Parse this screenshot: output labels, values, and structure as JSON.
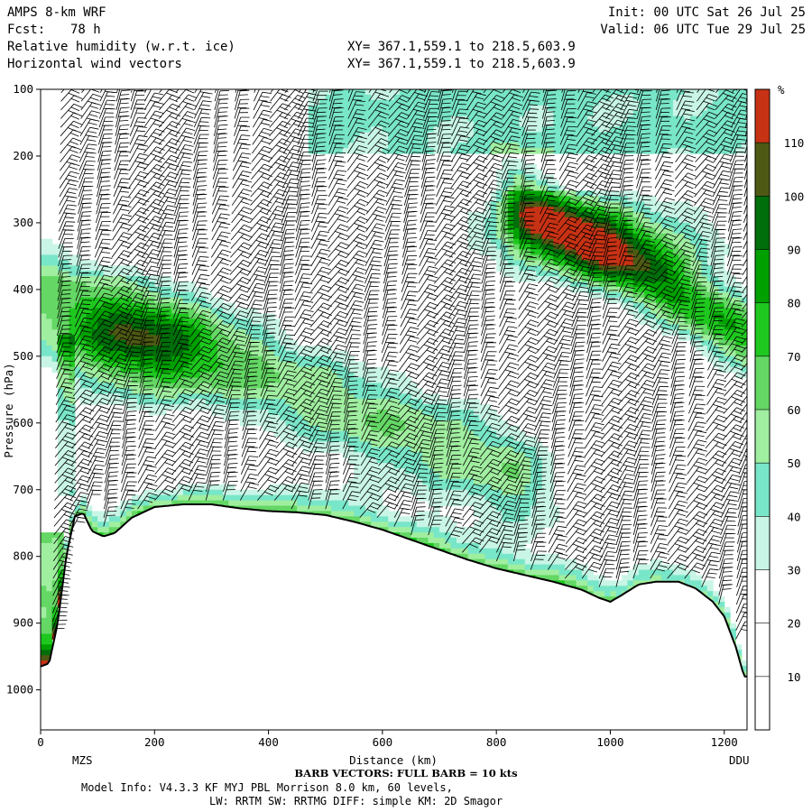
{
  "header": {
    "model": "AMPS 8-km WRF",
    "fcst_label": "Fcst:",
    "fcst_value": "78 h",
    "field1": "Relative humidity (w.r.t. ice)",
    "field2": "Horizontal wind vectors",
    "init": "Init: 00 UTC Sat 26 Jul 25",
    "valid": "Valid: 06 UTC Tue 29 Jul 25",
    "xy1": "XY= 367.1,559.1 to 218.5,603.9",
    "xy2": "XY= 367.1,559.1 to 218.5,603.9"
  },
  "footer": {
    "left_station": "MZS",
    "right_station": "DDU",
    "barb_note": "BARB VECTORS:  FULL BARB = 10 kts",
    "model_info_1": "Model Info: V4.3.3   KF     MYJ PBL  Morrison         8.0 km,  60 levels,",
    "model_info_2": "LW: RRTM SW: RRTMG   DIFF: simple KM: 2D Smagor"
  },
  "chart_data": {
    "type": "heatmap",
    "xlabel": "Distance (km)",
    "ylabel": "Pressure (hPa)",
    "xlim": [
      0,
      1240
    ],
    "ylim": [
      100,
      1060
    ],
    "x_ticks": [
      0,
      200,
      400,
      600,
      800,
      1000,
      1200
    ],
    "y_ticks": [
      100,
      200,
      300,
      400,
      500,
      600,
      700,
      800,
      900,
      1000
    ],
    "colorbar": {
      "unit": "%",
      "levels": [
        10,
        20,
        30,
        40,
        50,
        60,
        70,
        80,
        90,
        100,
        110
      ],
      "colors": [
        "#ffffff",
        "#ffffff",
        "#ffffff",
        "#c8f5e6",
        "#78e6c8",
        "#a0eea0",
        "#64d764",
        "#1ec81e",
        "#00a000",
        "#006e0a",
        "#4e5a14",
        "#c83214"
      ]
    },
    "terrain": {
      "x": [
        0,
        15,
        30,
        45,
        60,
        75,
        90,
        110,
        130,
        160,
        200,
        250,
        300,
        350,
        400,
        450,
        500,
        550,
        600,
        650,
        700,
        750,
        800,
        850,
        900,
        950,
        980,
        1000,
        1020,
        1050,
        1080,
        1120,
        1150,
        1180,
        1200,
        1220,
        1235
      ],
      "p": [
        965,
        960,
        900,
        800,
        740,
        735,
        762,
        770,
        765,
        742,
        726,
        722,
        722,
        728,
        732,
        734,
        738,
        748,
        760,
        775,
        790,
        805,
        818,
        828,
        838,
        850,
        862,
        868,
        858,
        842,
        838,
        838,
        848,
        868,
        890,
        935,
        980
      ]
    }
  }
}
